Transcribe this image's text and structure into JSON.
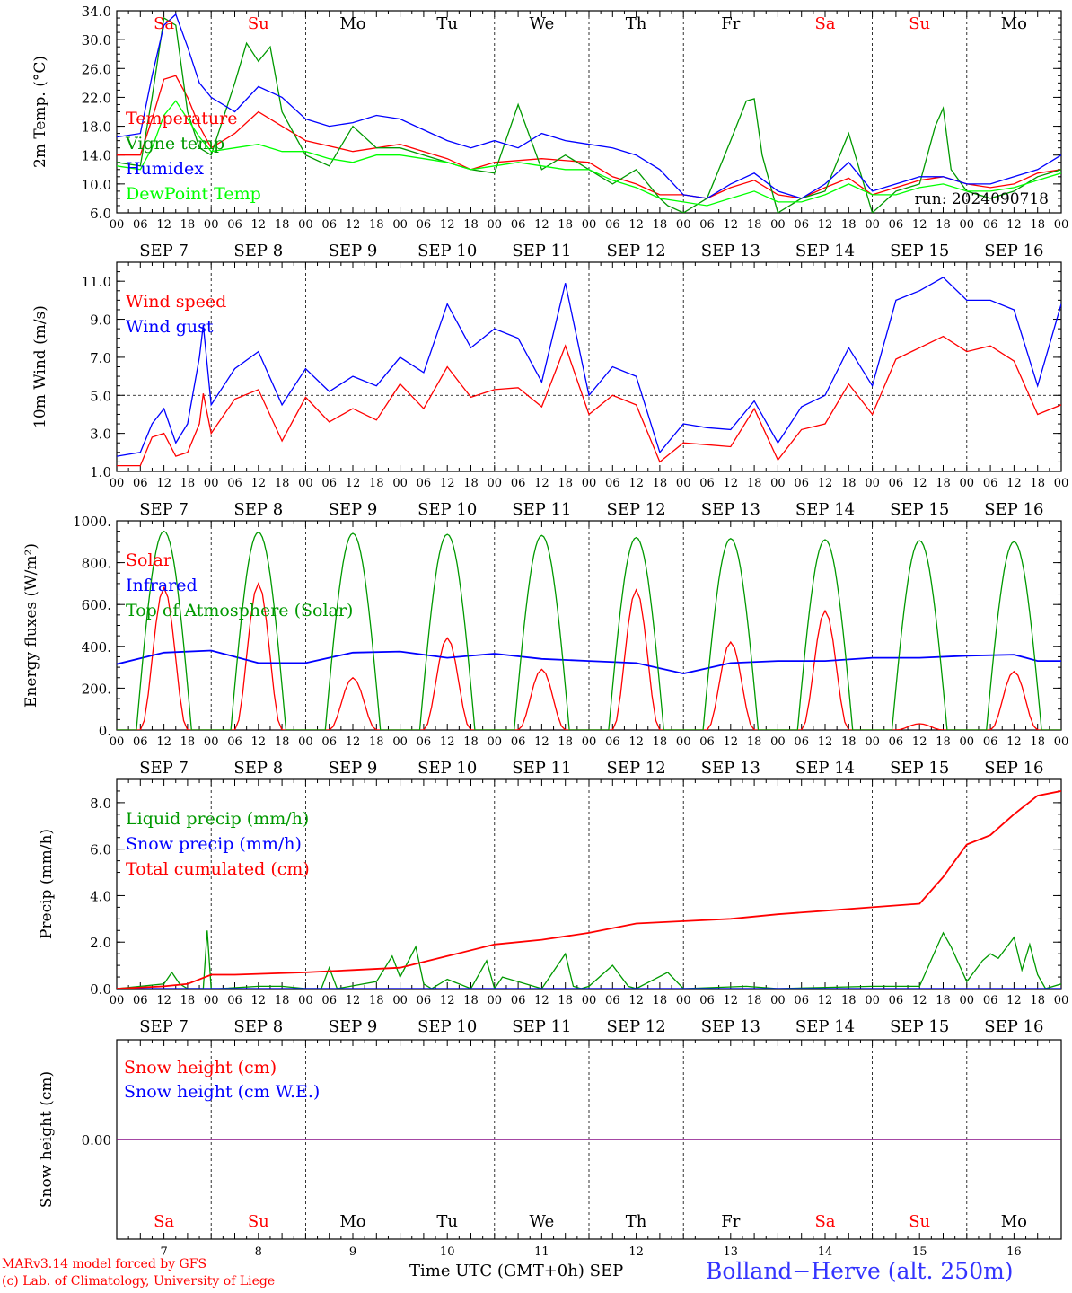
{
  "header": {
    "run_label": "run: 2024090718"
  },
  "footer": {
    "model_line": "MARv3.14 model forced by GFS",
    "copyright_line": "(c) Lab. of Climatology, University of Liege",
    "axis_title": "Time UTC (GMT+0h)",
    "month": "SEP",
    "station": "Bolland−Herve (alt. 250m)"
  },
  "days": {
    "names": [
      "Sa",
      "Su",
      "Mo",
      "Tu",
      "We",
      "Th",
      "Fr",
      "Sa",
      "Su",
      "Mo"
    ],
    "weekend_color": "#ff0000",
    "weekday_color": "#000000",
    "dates": [
      "SEP  7",
      "SEP  8",
      "SEP  9",
      "SEP 10",
      "SEP 11",
      "SEP 12",
      "SEP 13",
      "SEP 14",
      "SEP 15",
      "SEP 16"
    ],
    "numbers": [
      "7",
      "8",
      "9",
      "10",
      "11",
      "12",
      "13",
      "14",
      "15",
      "16"
    ],
    "hour_labels": [
      "00",
      "06",
      "12",
      "18"
    ],
    "final_hour": "00"
  },
  "chart_data": [
    {
      "type": "line",
      "ylabel": "2m Temp. (°C)",
      "ylim": [
        6,
        34
      ],
      "yticks": [
        "6.0",
        "10.0",
        "14.0",
        "18.0",
        "22.0",
        "26.0",
        "30.0",
        "34.0"
      ],
      "x_unit": "hours since SEP 7 00 UTC",
      "series": [
        {
          "name": "Temperature",
          "color": "#ff0000",
          "x": [
            0,
            6,
            9,
            12,
            15,
            18,
            21,
            24,
            30,
            36,
            42,
            48,
            60,
            72,
            78,
            84,
            90,
            96,
            108,
            120,
            126,
            132,
            138,
            144,
            150,
            156,
            162,
            168,
            174,
            180,
            186,
            192,
            198,
            204,
            210,
            216,
            222,
            228,
            234,
            240
          ],
          "y": [
            14,
            14,
            19,
            24.5,
            25,
            22,
            18,
            15,
            17,
            20,
            18,
            16,
            14.5,
            15.5,
            14.5,
            13.5,
            12,
            13,
            13.5,
            13,
            11,
            10,
            8.5,
            8.5,
            8,
            9.5,
            10.5,
            8.5,
            8,
            9.5,
            10.8,
            8.5,
            9.5,
            10.5,
            11,
            10,
            9.5,
            10,
            11.5,
            12
          ]
        },
        {
          "name": "Vigne temp",
          "color": "#009900",
          "x": [
            0,
            6,
            9,
            12,
            15,
            18,
            21,
            24,
            30,
            33,
            36,
            39,
            42,
            48,
            54,
            60,
            66,
            72,
            78,
            84,
            90,
            96,
            102,
            108,
            114,
            120,
            126,
            132,
            138,
            140,
            144,
            150,
            156,
            160,
            162,
            164,
            168,
            174,
            180,
            186,
            192,
            198,
            204,
            208,
            210,
            212,
            216,
            222,
            228,
            234,
            240
          ],
          "y": [
            13,
            12.5,
            22,
            33,
            32,
            20,
            15,
            14,
            24,
            29.5,
            27,
            29,
            20,
            14,
            12.5,
            18,
            15,
            15,
            14,
            13,
            12,
            11.5,
            21,
            12,
            14,
            12,
            10,
            12,
            8,
            7,
            6,
            8,
            16,
            21.5,
            21.8,
            14,
            6,
            8,
            9,
            17,
            6,
            9,
            10,
            18,
            20.5,
            12,
            9,
            8,
            9,
            11,
            12
          ]
        },
        {
          "name": "Humidex",
          "color": "#0000ff",
          "x": [
            0,
            6,
            9,
            12,
            15,
            18,
            21,
            24,
            30,
            36,
            42,
            48,
            54,
            60,
            66,
            72,
            78,
            84,
            90,
            96,
            102,
            108,
            114,
            120,
            126,
            132,
            138,
            144,
            150,
            156,
            162,
            168,
            174,
            180,
            186,
            192,
            198,
            204,
            210,
            216,
            222,
            228,
            234,
            240
          ],
          "y": [
            16.5,
            17,
            25,
            32,
            33.5,
            29,
            24,
            22,
            20,
            23.5,
            22,
            19,
            18,
            18.5,
            19.5,
            19,
            17.5,
            16,
            15,
            16,
            15,
            17,
            16,
            15.5,
            15,
            14,
            12,
            8.5,
            8,
            10,
            11.5,
            9,
            8,
            10,
            13,
            9,
            10,
            11,
            11,
            10,
            10,
            11,
            12,
            14
          ]
        },
        {
          "name": "DewPoint Temp",
          "color": "#00ff00",
          "x": [
            0,
            6,
            9,
            12,
            15,
            18,
            21,
            24,
            30,
            36,
            42,
            48,
            54,
            60,
            66,
            72,
            78,
            84,
            90,
            96,
            102,
            108,
            114,
            120,
            126,
            132,
            138,
            144,
            150,
            156,
            162,
            168,
            174,
            180,
            186,
            192,
            198,
            204,
            210,
            216,
            222,
            228,
            234,
            240
          ],
          "y": [
            12.5,
            12,
            15,
            19.5,
            21.5,
            19,
            16.5,
            14.5,
            15,
            15.5,
            14.5,
            14.5,
            13.5,
            13,
            14,
            14,
            13.5,
            13,
            12,
            12.5,
            13,
            12.5,
            12,
            12,
            10.5,
            9.5,
            8,
            7.5,
            7,
            8,
            9,
            7.5,
            7.5,
            8.5,
            10,
            8.5,
            8.5,
            9.5,
            10,
            9,
            9,
            9.5,
            10.5,
            11.5
          ]
        }
      ],
      "legend": [
        {
          "label": "Temperature",
          "color": "#ff0000"
        },
        {
          "label": "Vigne temp",
          "color": "#009900"
        },
        {
          "label": "Humidex",
          "color": "#0000ff"
        },
        {
          "label": "DewPoint Temp",
          "color": "#00ff00"
        }
      ]
    },
    {
      "type": "line",
      "ylabel": "10m Wind (m/s)",
      "ylim": [
        1,
        12
      ],
      "yticks": [
        "1.0",
        "3.0",
        "5.0",
        "7.0",
        "9.0",
        "11.0"
      ],
      "reference_line": 5,
      "series": [
        {
          "name": "Wind speed",
          "color": "#ff0000",
          "x": [
            0,
            6,
            9,
            12,
            15,
            18,
            21,
            22,
            24,
            30,
            36,
            42,
            48,
            54,
            60,
            66,
            72,
            78,
            84,
            90,
            96,
            102,
            108,
            114,
            120,
            126,
            132,
            138,
            144,
            150,
            156,
            162,
            168,
            174,
            180,
            186,
            192,
            198,
            204,
            210,
            216,
            222,
            228,
            234,
            240
          ],
          "y": [
            1.3,
            1.3,
            2.8,
            3,
            1.8,
            2,
            3.5,
            5.1,
            3,
            4.8,
            5.3,
            2.6,
            4.9,
            3.6,
            4.3,
            3.7,
            5.6,
            4.3,
            6.5,
            4.9,
            5.3,
            5.4,
            4.4,
            7.6,
            4,
            5,
            4.5,
            1.5,
            2.5,
            2.4,
            2.3,
            4.3,
            1.6,
            3.2,
            3.5,
            5.6,
            4,
            6.9,
            7.5,
            8.1,
            7.3,
            7.6,
            6.8,
            4,
            4.5
          ]
        },
        {
          "name": "Wind gust",
          "color": "#0000ff",
          "x": [
            0,
            6,
            9,
            12,
            15,
            18,
            21,
            22,
            24,
            30,
            36,
            42,
            48,
            54,
            60,
            66,
            72,
            78,
            84,
            90,
            96,
            102,
            108,
            114,
            120,
            126,
            132,
            138,
            144,
            150,
            156,
            162,
            168,
            174,
            180,
            186,
            192,
            198,
            204,
            210,
            216,
            222,
            228,
            234,
            240
          ],
          "y": [
            1.8,
            2,
            3.5,
            4.3,
            2.5,
            3.5,
            7,
            8.7,
            4.5,
            6.4,
            7.3,
            4.5,
            6.4,
            5.2,
            6,
            5.5,
            7,
            6.2,
            9.8,
            7.5,
            8.5,
            8,
            5.7,
            10.9,
            5,
            6.5,
            6,
            2,
            3.5,
            3.3,
            3.2,
            4.7,
            2.5,
            4.4,
            5,
            7.5,
            5.5,
            10,
            10.5,
            11.2,
            10,
            10,
            9.5,
            5.5,
            9.8
          ]
        }
      ],
      "legend": [
        {
          "label": "Wind speed",
          "color": "#ff0000"
        },
        {
          "label": "Wind gust",
          "color": "#0000ff"
        }
      ]
    },
    {
      "type": "line",
      "ylabel": "Energy fluxes (W/m²)",
      "ylim": [
        0,
        1000
      ],
      "yticks": [
        "0.",
        "200.",
        "400.",
        "600.",
        "800.",
        "1000."
      ],
      "series": [
        {
          "name": "Solar",
          "color": "#ff0000",
          "peaks": [
            {
              "day": 0,
              "value": 680
            },
            {
              "day": 1,
              "value": 700
            },
            {
              "day": 2,
              "value": 250
            },
            {
              "day": 3,
              "value": 440
            },
            {
              "day": 4,
              "value": 290
            },
            {
              "day": 5,
              "value": 670
            },
            {
              "day": 6,
              "value": 420
            },
            {
              "day": 7,
              "value": 570
            },
            {
              "day": 8,
              "value": 30
            },
            {
              "day": 9,
              "value": 280
            }
          ]
        },
        {
          "name": "Infrared",
          "color": "#0000ff",
          "x": [
            0,
            12,
            24,
            36,
            48,
            60,
            72,
            84,
            96,
            108,
            120,
            132,
            144,
            156,
            168,
            180,
            192,
            204,
            216,
            228,
            234,
            240
          ],
          "y": [
            315,
            370,
            380,
            320,
            320,
            370,
            375,
            345,
            365,
            340,
            330,
            320,
            270,
            320,
            330,
            330,
            345,
            345,
            355,
            360,
            330,
            330
          ]
        },
        {
          "name": "Top of Atmosphere (Solar)",
          "color": "#009900",
          "peak_values": [
            950,
            945,
            940,
            935,
            930,
            920,
            915,
            910,
            905,
            900
          ]
        }
      ],
      "legend": [
        {
          "label": "Solar",
          "color": "#ff0000"
        },
        {
          "label": "Infrared",
          "color": "#0000ff"
        },
        {
          "label": "Top of Atmosphere (Solar)",
          "color": "#009900"
        }
      ]
    },
    {
      "type": "line",
      "ylabel": "Precip (mm/h)",
      "ylim": [
        0,
        9
      ],
      "yticks": [
        "0.0",
        "2.0",
        "4.0",
        "6.0",
        "8.0"
      ],
      "series": [
        {
          "name": "Liquid precip (mm/h)",
          "color": "#009900",
          "x": [
            0,
            12,
            14,
            16,
            18,
            22,
            23,
            24,
            26,
            36,
            42,
            48,
            52,
            54,
            56,
            66,
            70,
            72,
            76,
            78,
            80,
            84,
            90,
            94,
            96,
            98,
            108,
            114,
            116,
            118,
            120,
            126,
            130,
            132,
            140,
            144,
            160,
            168,
            192,
            204,
            210,
            212,
            216,
            220,
            222,
            224,
            228,
            230,
            232,
            234,
            236,
            240
          ],
          "y": [
            0,
            0.2,
            0.7,
            0.2,
            0,
            0,
            2.5,
            0,
            0,
            0.1,
            0.1,
            0,
            0,
            0.9,
            0,
            0.3,
            1.4,
            0.5,
            1.8,
            0.2,
            0,
            0.4,
            0,
            1.2,
            0,
            0.5,
            0,
            1.5,
            0.1,
            0,
            0.1,
            1,
            0.1,
            0,
            0.7,
            0,
            0.1,
            0,
            0.1,
            0.1,
            2.4,
            1.8,
            0.3,
            1.2,
            1.5,
            1.3,
            2.2,
            0.8,
            1.9,
            0.6,
            0,
            0.2
          ]
        },
        {
          "name": "Snow precip (mm/h)",
          "color": "#0000ff",
          "x": [
            0,
            240
          ],
          "y": [
            0,
            0
          ]
        },
        {
          "name": "Total cumulated (cm)",
          "color": "#ff0000",
          "x": [
            0,
            12,
            18,
            24,
            30,
            48,
            60,
            72,
            84,
            96,
            108,
            120,
            132,
            144,
            156,
            168,
            180,
            192,
            204,
            210,
            216,
            222,
            228,
            234,
            240
          ],
          "y": [
            0,
            0.1,
            0.2,
            0.6,
            0.6,
            0.7,
            0.8,
            0.9,
            1.4,
            1.9,
            2.1,
            2.4,
            2.8,
            2.9,
            3,
            3.2,
            3.35,
            3.5,
            3.65,
            4.8,
            6.2,
            6.6,
            7.5,
            8.3,
            8.5
          ]
        }
      ],
      "legend": [
        {
          "label": "Liquid precip (mm/h)",
          "color": "#009900"
        },
        {
          "label": "Snow precip (mm/h)",
          "color": "#0000ff"
        },
        {
          "label": "Total cumulated (cm)",
          "color": "#ff0000"
        }
      ]
    },
    {
      "type": "line",
      "ylabel": "Snow height (cm)",
      "yticks": [
        "0.00"
      ],
      "series": [
        {
          "name": "Snow height (cm)",
          "color": "#ff0000",
          "x": [
            0,
            240
          ],
          "y": [
            0,
            0
          ]
        },
        {
          "name": "Snow height (cm W.E.)",
          "color": "#0000ff",
          "x": [
            0,
            240
          ],
          "y": [
            0,
            0
          ]
        }
      ],
      "legend": [
        {
          "label": "Snow height (cm)",
          "color": "#ff0000"
        },
        {
          "label": "Snow height (cm W.E.)",
          "color": "#0000ff"
        }
      ],
      "line_color": "#800080"
    }
  ]
}
